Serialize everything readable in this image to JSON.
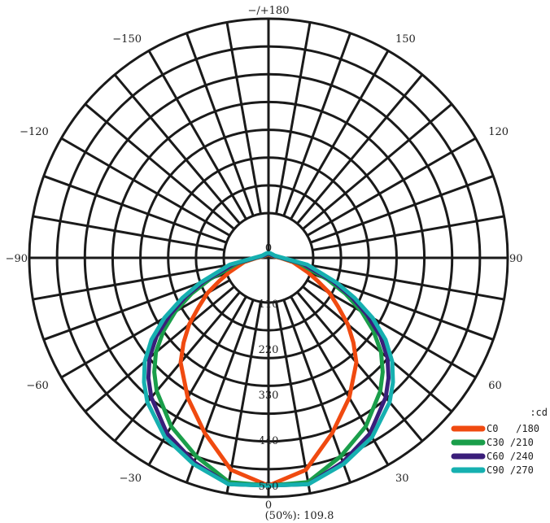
{
  "chart_data": {
    "type": "polar",
    "unit_label": ":cd",
    "footer": "(50%): 109.8",
    "r_max": 550,
    "radial_ticks": [
      110,
      220,
      330,
      440,
      550
    ],
    "radial_center_label": "0",
    "angle_labels": [
      {
        "angle": 180,
        "text": "−/+180"
      },
      {
        "angle": 150,
        "text": "150"
      },
      {
        "angle": -150,
        "text": "−150"
      },
      {
        "angle": 120,
        "text": "120"
      },
      {
        "angle": -120,
        "text": "−120"
      },
      {
        "angle": 90,
        "text": "90"
      },
      {
        "angle": -90,
        "text": "−90"
      },
      {
        "angle": 60,
        "text": "60"
      },
      {
        "angle": -60,
        "text": "−60"
      },
      {
        "angle": 30,
        "text": "30"
      },
      {
        "angle": -30,
        "text": "−30"
      },
      {
        "angle": 0,
        "text": "0"
      }
    ],
    "grid_angle_step": 10,
    "series": [
      {
        "name": "C0   /180",
        "color": "#f04a10",
        "angles": [
          0,
          10,
          20,
          30,
          40,
          45,
          50,
          55,
          60,
          65,
          70,
          80,
          90,
          100,
          110,
          120,
          130,
          140,
          150,
          160,
          170,
          180
        ],
        "values": [
          550,
          520,
          450,
          390,
          330,
          290,
          250,
          205,
          170,
          130,
          100,
          60,
          28,
          16,
          12,
          10,
          9,
          8,
          8,
          8,
          8,
          8
        ]
      },
      {
        "name": "C30 /210",
        "color": "#1a9e4a",
        "angles": [
          0,
          10,
          20,
          30,
          40,
          45,
          50,
          55,
          60,
          65,
          70,
          80,
          90,
          100,
          110,
          120,
          130,
          140,
          150,
          160,
          170,
          180
        ],
        "values": [
          550,
          550,
          510,
          470,
          420,
          390,
          355,
          310,
          260,
          205,
          150,
          75,
          30,
          18,
          13,
          11,
          10,
          9,
          9,
          9,
          9,
          9
        ]
      },
      {
        "name": "C60 /240",
        "color": "#3a1e7a",
        "angles": [
          0,
          10,
          20,
          30,
          40,
          45,
          50,
          55,
          60,
          65,
          70,
          80,
          90,
          100,
          110,
          120,
          130,
          140,
          150,
          160,
          170,
          180
        ],
        "values": [
          550,
          555,
          525,
          490,
          440,
          410,
          375,
          330,
          275,
          220,
          165,
          85,
          32,
          20,
          14,
          12,
          11,
          10,
          10,
          10,
          10,
          10
        ]
      },
      {
        "name": "C90 /270",
        "color": "#16b0b0",
        "angles": [
          0,
          10,
          20,
          30,
          40,
          45,
          50,
          55,
          60,
          65,
          70,
          80,
          90,
          100,
          110,
          120,
          130,
          140,
          150,
          160,
          170,
          180
        ],
        "values": [
          550,
          555,
          530,
          500,
          455,
          425,
          390,
          345,
          290,
          230,
          175,
          95,
          35,
          22,
          16,
          14,
          13,
          12,
          12,
          12,
          12,
          12
        ]
      }
    ]
  }
}
